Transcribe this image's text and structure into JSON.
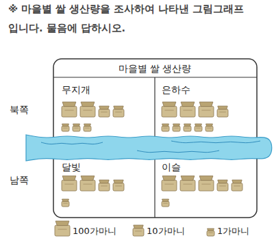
{
  "chart_data": {
    "type": "pictograph",
    "instruction": [
      "※ 마을별 쌀 생산량을 조사하여 나타낸 그림그래프",
      "입니다. 물음에 답하시오."
    ],
    "title": "마을별 쌀 생산량",
    "regions": [
      "북쪽",
      "남쪽"
    ],
    "categories": [
      "무지개",
      "은하수",
      "달빛",
      "이슬"
    ],
    "values": [
      223,
      315,
      221,
      321
    ],
    "units": [
      {
        "value": 100,
        "label": "100가마니"
      },
      {
        "value": 10,
        "label": "10가마니"
      },
      {
        "value": 1,
        "label": "1가마니"
      }
    ]
  }
}
